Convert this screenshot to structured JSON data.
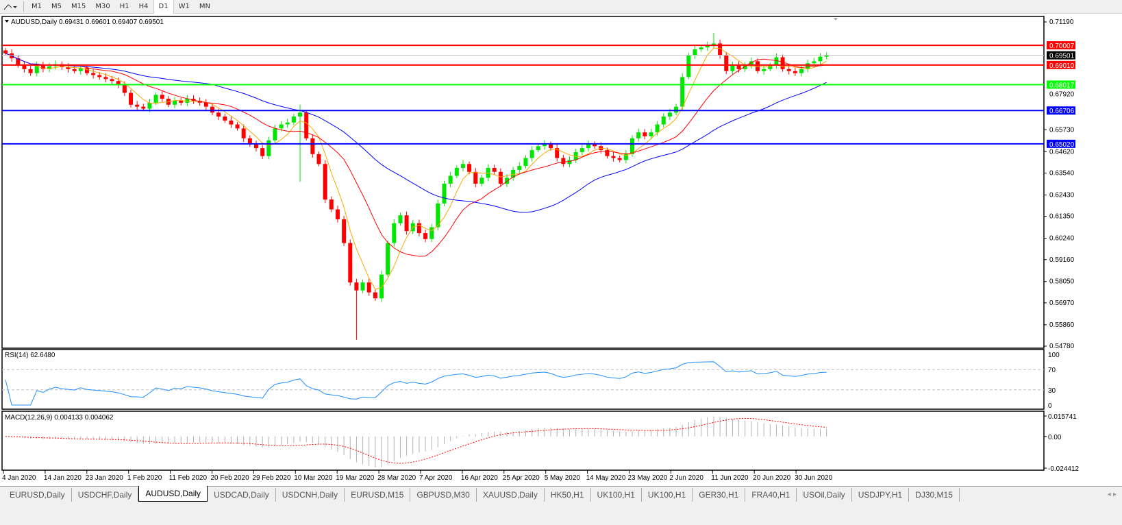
{
  "toolbar": {
    "timeframes": [
      "M1",
      "M5",
      "M15",
      "M30",
      "H1",
      "H4",
      "D1",
      "W1",
      "MN"
    ],
    "active": "D1",
    "tool_icon": "line-tool-icon"
  },
  "chart": {
    "header": "AUDUSD,Daily  0.69431 0.69601 0.69407 0.69501",
    "price_ticks": [
      "0.71190",
      "0.65730",
      "0.64620",
      "0.63540",
      "0.62430",
      "0.61350",
      "0.60240",
      "0.59160",
      "0.58050",
      "0.56970",
      "0.55860",
      "0.54780"
    ],
    "hidden_tick": "0.67920",
    "levels": [
      {
        "price": 0.70007,
        "label": "0.70007",
        "color": "#ff0000"
      },
      {
        "price": 0.6901,
        "label": "0.69010",
        "color": "#ff0000"
      },
      {
        "price": 0.68017,
        "label": "0.68017",
        "color": "#00ff00"
      },
      {
        "price": 0.66706,
        "label": "0.66706",
        "color": "#0000ff"
      },
      {
        "price": 0.6502,
        "label": "0.65020",
        "color": "#0000ff"
      }
    ],
    "bid": {
      "price": 0.69501,
      "label": "0.69501"
    },
    "colors": {
      "bull": "#00e600",
      "bear": "#ff0000",
      "ma_fast": "#ffa500",
      "ma_mid": "#ff0000",
      "ma_slow": "#0000ff"
    }
  },
  "rsi": {
    "label": "RSI(14) 62.6480",
    "ticks": [
      "100",
      "70",
      "30",
      "0"
    ],
    "color": "#1e90ff"
  },
  "macd": {
    "label": "MACD(12,26,9) 0.004133 0.004062",
    "ticks": [
      "0.015741",
      "0.00",
      "-0.024412"
    ]
  },
  "dates": [
    "4 Jan 2020",
    "14 Jan 2020",
    "23 Jan 2020",
    "1 Feb 2020",
    "11 Feb 2020",
    "20 Feb 2020",
    "29 Feb 2020",
    "10 Mar 2020",
    "19 Mar 2020",
    "28 Mar 2020",
    "7 Apr 2020",
    "16 Apr 2020",
    "25 Apr 2020",
    "5 May 2020",
    "14 May 2020",
    "23 May 2020",
    "2 Jun 2020",
    "11 Jun 2020",
    "20 Jun 2020",
    "30 Jun 2020"
  ],
  "tabs": [
    "EURUSD,Daily",
    "USDCHF,Daily",
    "AUDUSD,Daily",
    "USDCAD,Daily",
    "USDCNH,Daily",
    "EURUSD,M15",
    "GBPUSD,M30",
    "XAUUSD,Daily",
    "HK50,H1",
    "UK100,H1",
    "UK100,H1",
    "GER30,H1",
    "FRA40,H1",
    "USOil,Daily",
    "USDJPY,H1",
    "DJ30,M15"
  ],
  "active_tab": 2,
  "chart_data": {
    "type": "candlestick",
    "symbol": "AUDUSD",
    "timeframe": "Daily",
    "ylim": [
      0.5478,
      0.7119
    ],
    "closes": [
      0.696,
      0.6935,
      0.69,
      0.688,
      0.686,
      0.69,
      0.688,
      0.6895,
      0.6905,
      0.689,
      0.688,
      0.687,
      0.6885,
      0.686,
      0.685,
      0.684,
      0.683,
      0.682,
      0.68,
      0.676,
      0.67,
      0.669,
      0.668,
      0.671,
      0.675,
      0.673,
      0.67,
      0.672,
      0.671,
      0.673,
      0.672,
      0.671,
      0.669,
      0.666,
      0.664,
      0.662,
      0.66,
      0.658,
      0.653,
      0.65,
      0.648,
      0.644,
      0.652,
      0.658,
      0.66,
      0.661,
      0.664,
      0.666,
      0.653,
      0.645,
      0.64,
      0.622,
      0.617,
      0.612,
      0.6,
      0.58,
      0.576,
      0.58,
      0.575,
      0.572,
      0.584,
      0.6,
      0.61,
      0.614,
      0.606,
      0.61,
      0.605,
      0.602,
      0.608,
      0.62,
      0.63,
      0.634,
      0.638,
      0.64,
      0.636,
      0.63,
      0.633,
      0.638,
      0.636,
      0.63,
      0.633,
      0.637,
      0.639,
      0.643,
      0.647,
      0.649,
      0.65,
      0.648,
      0.643,
      0.64,
      0.642,
      0.646,
      0.648,
      0.65,
      0.649,
      0.647,
      0.644,
      0.643,
      0.642,
      0.645,
      0.653,
      0.656,
      0.654,
      0.656,
      0.66,
      0.664,
      0.666,
      0.669,
      0.684,
      0.695,
      0.698,
      0.699,
      0.7,
      0.701,
      0.695,
      0.687,
      0.69,
      0.688,
      0.69,
      0.692,
      0.687,
      0.688,
      0.69,
      0.694,
      0.688,
      0.687,
      0.686,
      0.688,
      0.691,
      0.692,
      0.6943,
      0.695
    ],
    "wick_overrides": [
      {
        "index": 56,
        "low": 0.551
      },
      {
        "index": 47,
        "low": 0.631,
        "high": 0.67
      },
      {
        "index": 113,
        "high": 0.7064
      }
    ],
    "indicators": [
      "MA fast",
      "MA mid",
      "MA slow",
      "RSI(14)",
      "MACD(12,26,9)"
    ]
  }
}
